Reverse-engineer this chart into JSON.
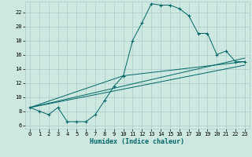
{
  "title": "",
  "xlabel": "Humidex (Indice chaleur)",
  "ylabel": "",
  "bg_color": "#cce8e0",
  "grid_color": "#aacccc",
  "line_color": "#006666",
  "xlim": [
    -0.5,
    23.5
  ],
  "ylim": [
    5.5,
    23.5
  ],
  "xticks": [
    0,
    1,
    2,
    3,
    4,
    5,
    6,
    7,
    8,
    9,
    10,
    11,
    12,
    13,
    14,
    15,
    16,
    17,
    18,
    19,
    20,
    21,
    22,
    23
  ],
  "yticks": [
    6,
    8,
    10,
    12,
    14,
    16,
    18,
    20,
    22
  ],
  "series": {
    "main": [
      [
        0,
        8.5
      ],
      [
        1,
        8.0
      ],
      [
        2,
        7.5
      ],
      [
        3,
        8.5
      ],
      [
        4,
        6.5
      ],
      [
        5,
        6.5
      ],
      [
        6,
        6.5
      ],
      [
        7,
        7.5
      ],
      [
        8,
        9.5
      ],
      [
        9,
        11.5
      ],
      [
        10,
        13.0
      ],
      [
        11,
        18.0
      ],
      [
        12,
        20.5
      ],
      [
        13,
        23.2
      ],
      [
        14,
        23.0
      ],
      [
        15,
        23.0
      ],
      [
        16,
        22.5
      ],
      [
        17,
        21.5
      ],
      [
        18,
        19.0
      ],
      [
        19,
        19.0
      ],
      [
        20,
        16.0
      ],
      [
        21,
        16.5
      ],
      [
        22,
        15.0
      ],
      [
        23,
        15.0
      ]
    ],
    "line2": [
      [
        0,
        8.5
      ],
      [
        10,
        13.0
      ],
      [
        23,
        15.0
      ]
    ],
    "line3": [
      [
        0,
        8.5
      ],
      [
        23,
        14.5
      ]
    ],
    "line4": [
      [
        0,
        8.5
      ],
      [
        23,
        15.5
      ]
    ]
  }
}
